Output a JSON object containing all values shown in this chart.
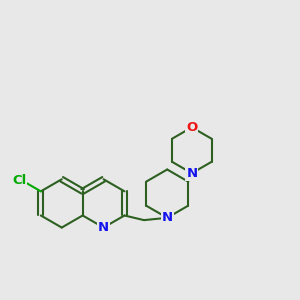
{
  "bg_color": "#e8e8e8",
  "bond_color": "#2d6020",
  "n_color": "#1414ee",
  "o_color": "#ee1414",
  "cl_color": "#00aa00",
  "lw": 1.5,
  "fs": 9.5,
  "r": 0.52,
  "xlim": [
    0.8,
    7.2
  ],
  "ylim": [
    2.8,
    8.5
  ]
}
